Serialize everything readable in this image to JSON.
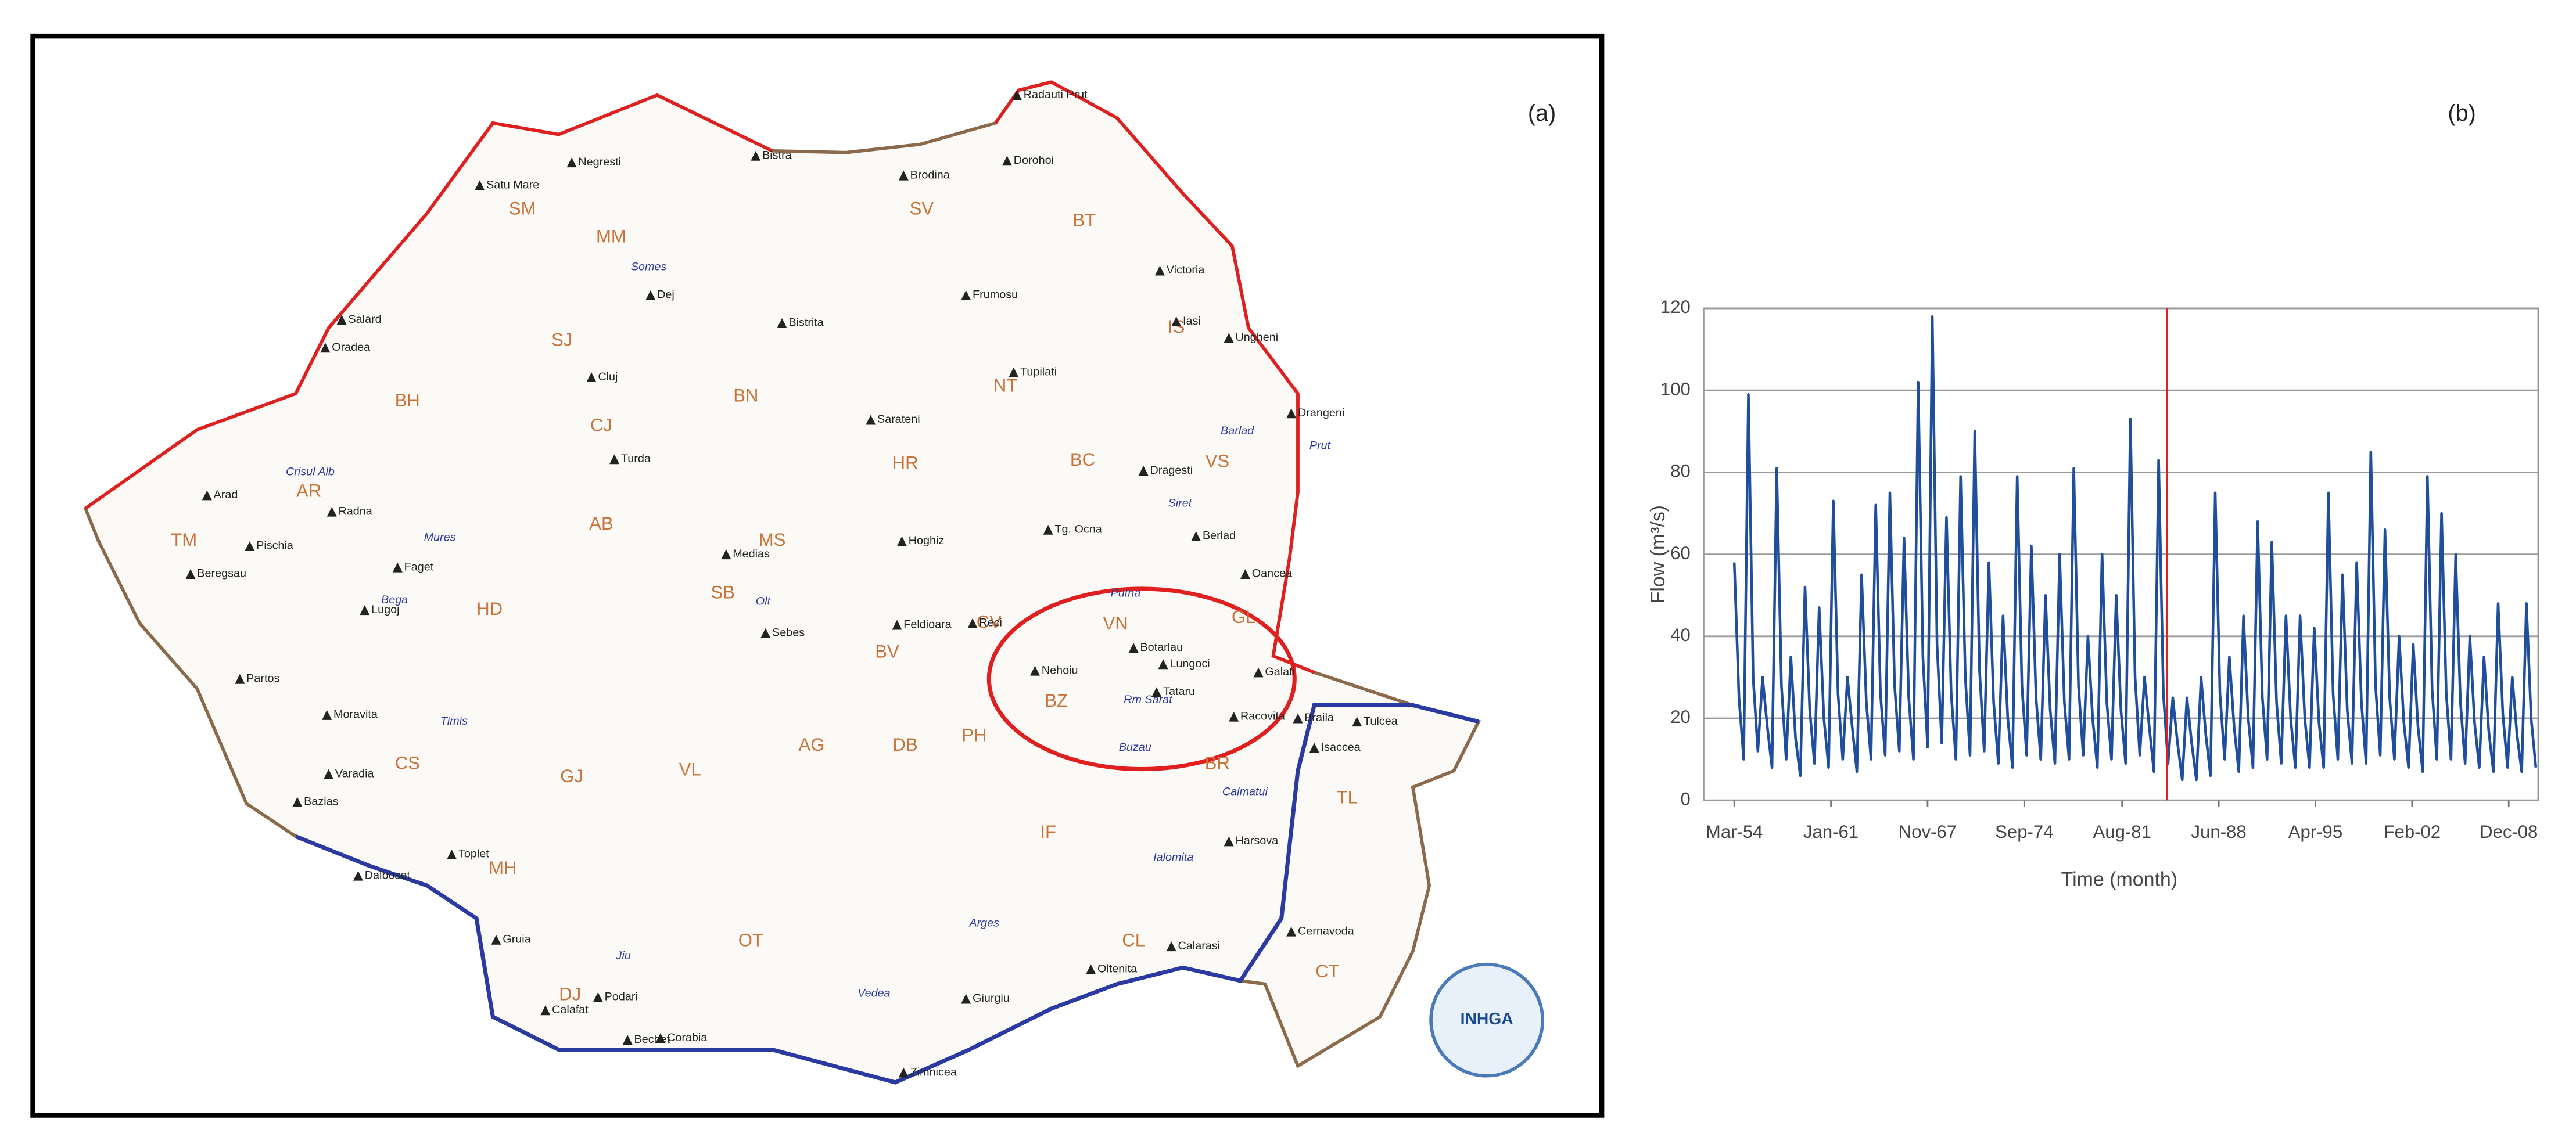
{
  "map": {
    "panel_label": "(a)",
    "logo": "INHGA",
    "regions": [
      "TM",
      "AR",
      "BH",
      "SM",
      "MM",
      "SJ",
      "CJ",
      "BN",
      "MS",
      "AB",
      "HD",
      "CS",
      "GJ",
      "MH",
      "DJ",
      "VL",
      "SB",
      "BV",
      "HR",
      "CV",
      "NT",
      "BC",
      "SV",
      "BT",
      "IS",
      "VS",
      "VN",
      "GL",
      "BZ",
      "BR",
      "PH",
      "DB",
      "AG",
      "OT",
      "IF",
      "CL",
      "TL",
      "CT"
    ],
    "places": [
      "Arad",
      "Radna",
      "Pischia",
      "Beregsau",
      "Lugoj",
      "Faget",
      "Oradea",
      "Salard",
      "Satu Mare",
      "Negresti",
      "Bistra",
      "Cluj",
      "Dej",
      "Turda",
      "Medias",
      "Sebes",
      "Feldioara",
      "Tg. Ocna",
      "Nehoiu",
      "Botarlau",
      "Lungoci",
      "Tataru",
      "Galati",
      "Braila",
      "Tulcea",
      "Isaccea",
      "Harsova",
      "Cernavoda",
      "Calarasi",
      "Oltenita",
      "Giurgiu",
      "Zimnicea",
      "Corabia",
      "Calafat",
      "Bechet",
      "Podari",
      "Iasi",
      "Ungheni",
      "Radauti Prut",
      "Dorohoi",
      "Brodina",
      "Frumosu",
      "Gruia",
      "Toplet",
      "Dalboset",
      "Moravita",
      "Varadia",
      "Bazias",
      "Partos",
      "Bistrita",
      "Sarateni",
      "Hoghiz",
      "Reci",
      "Racovita",
      "Dragesti",
      "Oancea",
      "Berlad",
      "Drangeni",
      "Tupilati",
      "Victoria"
    ],
    "rivers": [
      "Mures",
      "Olt",
      "Siret",
      "Prut",
      "Buzau",
      "Jiu",
      "Somes",
      "Ialomita",
      "Arges",
      "Crisul Alb",
      "Bega",
      "Timis",
      "Putna",
      "Rm Sarat",
      "Calmatui",
      "Vedea",
      "Barlad"
    ]
  },
  "chart_data": {
    "type": "line",
    "panel_label": "(b)",
    "x_label": "Time (month)",
    "y_label": "Flow (m³/s)",
    "x": [
      "1954-03",
      "1954-07",
      "1954-11",
      "1955-03",
      "1955-07",
      "1955-11",
      "1956-03",
      "1956-07",
      "1956-11",
      "1957-03",
      "1957-07",
      "1957-11",
      "1958-03",
      "1958-07",
      "1958-11",
      "1959-03",
      "1959-07",
      "1959-11",
      "1960-03",
      "1960-07",
      "1960-11",
      "1961-03",
      "1961-07",
      "1961-11",
      "1962-03",
      "1962-07",
      "1962-11",
      "1963-03",
      "1963-07",
      "1963-11",
      "1964-03",
      "1964-07",
      "1964-11",
      "1965-03",
      "1965-07",
      "1965-11",
      "1966-03",
      "1966-07",
      "1966-11",
      "1967-03",
      "1967-07",
      "1967-11",
      "1968-03",
      "1968-07",
      "1968-11",
      "1969-03",
      "1969-07",
      "1969-11",
      "1970-03",
      "1970-07",
      "1970-11",
      "1971-03",
      "1971-07",
      "1971-11",
      "1972-03",
      "1972-07",
      "1972-11",
      "1973-03",
      "1973-07",
      "1973-11",
      "1974-03",
      "1974-07",
      "1974-11",
      "1975-03",
      "1975-07",
      "1975-11",
      "1976-03",
      "1976-07",
      "1976-11",
      "1977-03",
      "1977-07",
      "1977-11",
      "1978-03",
      "1978-07",
      "1978-11",
      "1979-03",
      "1979-07",
      "1979-11",
      "1980-03",
      "1980-07",
      "1980-11",
      "1981-03",
      "1981-07",
      "1981-11",
      "1982-03",
      "1982-07",
      "1982-11",
      "1983-03",
      "1983-07",
      "1983-11",
      "1984-03",
      "1984-07",
      "1984-11",
      "1985-03",
      "1985-07",
      "1985-11",
      "1986-03",
      "1986-07",
      "1986-11",
      "1987-03",
      "1987-07",
      "1987-11",
      "1988-03",
      "1988-07",
      "1988-11",
      "1989-03",
      "1989-07",
      "1989-11",
      "1990-03",
      "1990-07",
      "1990-11",
      "1991-03",
      "1991-07",
      "1991-11",
      "1992-03",
      "1992-07",
      "1992-11",
      "1993-03",
      "1993-07",
      "1993-11",
      "1994-03",
      "1994-07",
      "1994-11",
      "1995-03",
      "1995-07",
      "1995-11",
      "1996-03",
      "1996-07",
      "1996-11",
      "1997-03",
      "1997-07",
      "1997-11",
      "1998-03",
      "1998-07",
      "1998-11",
      "1999-03",
      "1999-07",
      "1999-11",
      "2000-03",
      "2000-07",
      "2000-11",
      "2001-03",
      "2001-07",
      "2001-11",
      "2002-03",
      "2002-07",
      "2002-11",
      "2003-03",
      "2003-07",
      "2003-11",
      "2004-03",
      "2004-07",
      "2004-11",
      "2005-03",
      "2005-07",
      "2005-11",
      "2006-03",
      "2006-07",
      "2006-11",
      "2007-03",
      "2007-07",
      "2007-11",
      "2008-03",
      "2008-07",
      "2008-11",
      "2009-03",
      "2009-07",
      "2009-11",
      "2010-03",
      "2010-07",
      "2010-11"
    ],
    "series": [
      {
        "color": "#1f4e9c",
        "values": [
          58,
          25,
          10,
          99,
          30,
          12,
          30,
          18,
          8,
          81,
          28,
          10,
          35,
          15,
          6,
          52,
          22,
          9,
          47,
          20,
          8,
          73,
          26,
          10,
          30,
          18,
          7,
          55,
          24,
          10,
          72,
          26,
          11,
          75,
          28,
          12,
          64,
          25,
          10,
          102,
          35,
          13,
          118,
          38,
          14,
          69,
          26,
          10,
          79,
          30,
          11,
          90,
          32,
          12,
          58,
          24,
          9,
          45,
          20,
          8,
          79,
          28,
          11,
          62,
          25,
          10,
          50,
          22,
          9,
          60,
          24,
          10,
          81,
          28,
          11,
          40,
          20,
          8,
          60,
          24,
          10,
          50,
          22,
          9,
          93,
          30,
          11,
          30,
          18,
          7,
          83,
          26,
          9,
          25,
          14,
          5,
          25,
          14,
          5,
          30,
          16,
          6,
          75,
          26,
          10,
          35,
          18,
          7,
          45,
          20,
          8,
          68,
          25,
          10,
          63,
          24,
          9,
          45,
          20,
          8,
          45,
          20,
          8,
          42,
          19,
          8,
          75,
          26,
          10,
          55,
          22,
          9,
          58,
          24,
          9,
          85,
          28,
          11,
          66,
          25,
          10,
          40,
          19,
          8,
          38,
          18,
          7,
          79,
          27,
          10,
          70,
          26,
          10,
          60,
          24,
          9,
          40,
          19,
          8,
          35,
          17,
          7,
          48,
          21,
          8,
          30,
          16,
          7,
          48,
          20,
          8
        ]
      }
    ],
    "xlim": [
      "1952-01",
      "2011-01"
    ],
    "xticks": [
      {
        "value": "1954-03",
        "label": "Mar-54"
      },
      {
        "value": "1961-01",
        "label": "Jan-61"
      },
      {
        "value": "1967-11",
        "label": "Nov-67"
      },
      {
        "value": "1974-09",
        "label": "Sep-74"
      },
      {
        "value": "1981-08",
        "label": "Aug-81"
      },
      {
        "value": "1988-06",
        "label": "Jun-88"
      },
      {
        "value": "1995-04",
        "label": "Apr-95"
      },
      {
        "value": "2002-02",
        "label": "Feb-02"
      },
      {
        "value": "2008-12",
        "label": "Dec-08"
      }
    ],
    "ylim": [
      0,
      120
    ],
    "yticks": [
      0,
      20,
      40,
      60,
      80,
      100,
      120
    ],
    "grid": true,
    "vline": {
      "x": "1984-10",
      "color": "#e02020"
    }
  }
}
